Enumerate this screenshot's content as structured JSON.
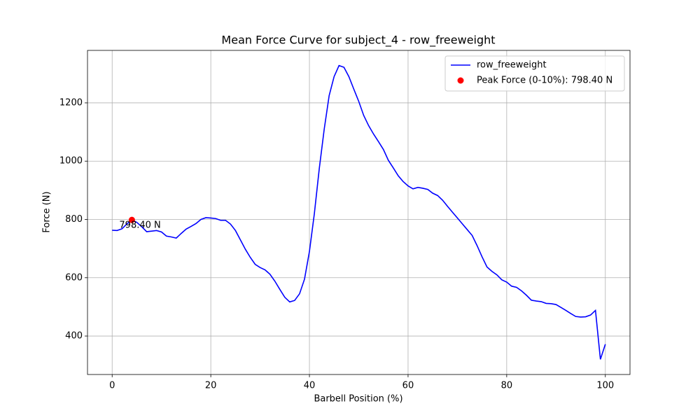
{
  "chart_data": {
    "type": "line",
    "title": "Mean Force Curve for subject_4 - row_freeweight",
    "x_label": "Barbell Position (%)",
    "y_label": "Force (N)",
    "x": [
      0,
      1,
      2,
      3,
      4,
      5,
      6,
      7,
      8,
      9,
      10,
      11,
      12,
      13,
      14,
      15,
      16,
      17,
      18,
      19,
      20,
      21,
      22,
      23,
      24,
      25,
      26,
      27,
      28,
      29,
      30,
      31,
      32,
      33,
      34,
      35,
      36,
      37,
      38,
      39,
      40,
      41,
      42,
      43,
      44,
      45,
      46,
      47,
      48,
      49,
      50,
      51,
      52,
      53,
      54,
      55,
      56,
      57,
      58,
      59,
      60,
      61,
      62,
      63,
      64,
      65,
      66,
      67,
      68,
      69,
      70,
      71,
      72,
      73,
      74,
      75,
      76,
      77,
      78,
      79,
      80,
      81,
      82,
      83,
      84,
      85,
      86,
      87,
      88,
      89,
      90,
      91,
      92,
      93,
      94,
      95,
      96,
      97,
      98,
      99,
      100
    ],
    "series": [
      {
        "name": "row_freeweight",
        "color": "blue",
        "type": "line",
        "values": [
          763,
          762,
          768,
          785,
          798,
          790,
          775,
          758,
          760,
          762,
          757,
          743,
          740,
          736,
          752,
          767,
          776,
          786,
          800,
          806,
          805,
          803,
          797,
          797,
          784,
          762,
          730,
          698,
          670,
          646,
          635,
          627,
          612,
          588,
          560,
          533,
          517,
          522,
          545,
          595,
          690,
          820,
          975,
          1110,
          1225,
          1290,
          1328,
          1322,
          1290,
          1247,
          1205,
          1157,
          1122,
          1093,
          1067,
          1040,
          1003,
          977,
          950,
          930,
          915,
          905,
          910,
          907,
          903,
          890,
          882,
          866,
          845,
          825,
          805,
          785,
          765,
          745,
          710,
          672,
          637,
          622,
          610,
          593,
          585,
          571,
          567,
          555,
          540,
          523,
          520,
          518,
          512,
          511,
          508,
          498,
          488,
          477,
          467,
          465,
          466,
          472,
          488,
          320,
          372
        ]
      },
      {
        "name": "Peak Force (0-10%): 798.40 N",
        "color": "red",
        "type": "scatter",
        "x": [
          4
        ],
        "values": [
          798.4
        ],
        "value_labels": [
          "798.40 N"
        ]
      }
    ],
    "xlim": [
      -5,
      105
    ],
    "xticks": [
      0,
      20,
      40,
      60,
      80,
      100
    ],
    "ylim": [
      268,
      1380
    ],
    "yticks": [
      400,
      600,
      800,
      1000,
      1200
    ],
    "grid": true,
    "legend": "upper right"
  }
}
